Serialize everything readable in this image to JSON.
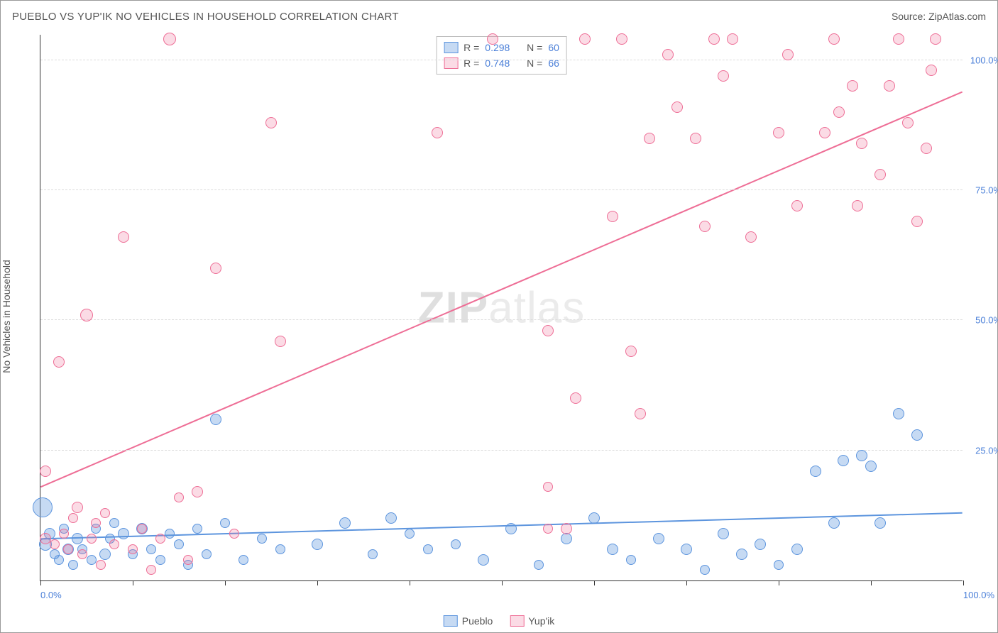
{
  "title": "PUEBLO VS YUP'IK NO VEHICLES IN HOUSEHOLD CORRELATION CHART",
  "source": "Source: ZipAtlas.com",
  "y_axis_label": "No Vehicles in Household",
  "watermark": {
    "bold": "ZIP",
    "rest": "atlas"
  },
  "chart": {
    "type": "scatter",
    "xlim": [
      0,
      100
    ],
    "ylim": [
      0,
      105
    ],
    "y_gridlines": [
      25,
      50,
      75,
      100
    ],
    "y_tick_labels": [
      "25.0%",
      "50.0%",
      "75.0%",
      "100.0%"
    ],
    "x_ticks": [
      0,
      10,
      20,
      30,
      40,
      50,
      60,
      70,
      80,
      90,
      100
    ],
    "x_tick_labels": {
      "min": "0.0%",
      "max": "100.0%"
    },
    "grid_color": "#dcdcdc",
    "axis_color": "#333333",
    "tick_label_color": "#4a7fd8",
    "background": "#ffffff",
    "point_radius_default": 8,
    "series": [
      {
        "name": "Pueblo",
        "color": "#5d95de",
        "fill": "rgba(93,149,222,0.35)",
        "R": 0.298,
        "N": 60,
        "trend": {
          "x0": 0,
          "y0": 8,
          "x1": 100,
          "y1": 13,
          "width": 2
        },
        "points": [
          {
            "x": 0.5,
            "y": 7,
            "r": 9
          },
          {
            "x": 0.2,
            "y": 14,
            "r": 14
          },
          {
            "x": 1.5,
            "y": 5,
            "r": 7
          },
          {
            "x": 1,
            "y": 9,
            "r": 8
          },
          {
            "x": 2,
            "y": 4,
            "r": 7
          },
          {
            "x": 2.5,
            "y": 10,
            "r": 7
          },
          {
            "x": 3,
            "y": 6,
            "r": 8
          },
          {
            "x": 3.5,
            "y": 3,
            "r": 7
          },
          {
            "x": 4,
            "y": 8,
            "r": 8
          },
          {
            "x": 4.5,
            "y": 6,
            "r": 7
          },
          {
            "x": 5.5,
            "y": 4,
            "r": 7
          },
          {
            "x": 6,
            "y": 10,
            "r": 7
          },
          {
            "x": 7,
            "y": 5,
            "r": 8
          },
          {
            "x": 7.5,
            "y": 8,
            "r": 7
          },
          {
            "x": 8,
            "y": 11,
            "r": 7
          },
          {
            "x": 9,
            "y": 9,
            "r": 8
          },
          {
            "x": 10,
            "y": 5,
            "r": 7
          },
          {
            "x": 11,
            "y": 10,
            "r": 8
          },
          {
            "x": 12,
            "y": 6,
            "r": 7
          },
          {
            "x": 13,
            "y": 4,
            "r": 7
          },
          {
            "x": 14,
            "y": 9,
            "r": 7
          },
          {
            "x": 15,
            "y": 7,
            "r": 7
          },
          {
            "x": 16,
            "y": 3,
            "r": 7
          },
          {
            "x": 17,
            "y": 10,
            "r": 7
          },
          {
            "x": 18,
            "y": 5,
            "r": 7
          },
          {
            "x": 19,
            "y": 31,
            "r": 8
          },
          {
            "x": 20,
            "y": 11,
            "r": 7
          },
          {
            "x": 22,
            "y": 4,
            "r": 7
          },
          {
            "x": 24,
            "y": 8,
            "r": 7
          },
          {
            "x": 26,
            "y": 6,
            "r": 7
          },
          {
            "x": 30,
            "y": 7,
            "r": 8
          },
          {
            "x": 33,
            "y": 11,
            "r": 8
          },
          {
            "x": 36,
            "y": 5,
            "r": 7
          },
          {
            "x": 38,
            "y": 12,
            "r": 8
          },
          {
            "x": 40,
            "y": 9,
            "r": 7
          },
          {
            "x": 42,
            "y": 6,
            "r": 7
          },
          {
            "x": 45,
            "y": 7,
            "r": 7
          },
          {
            "x": 48,
            "y": 4,
            "r": 8
          },
          {
            "x": 51,
            "y": 10,
            "r": 8
          },
          {
            "x": 54,
            "y": 3,
            "r": 7
          },
          {
            "x": 57,
            "y": 8,
            "r": 8
          },
          {
            "x": 60,
            "y": 12,
            "r": 8
          },
          {
            "x": 62,
            "y": 6,
            "r": 8
          },
          {
            "x": 64,
            "y": 4,
            "r": 7
          },
          {
            "x": 67,
            "y": 8,
            "r": 8
          },
          {
            "x": 70,
            "y": 6,
            "r": 8
          },
          {
            "x": 72,
            "y": 2,
            "r": 7
          },
          {
            "x": 74,
            "y": 9,
            "r": 8
          },
          {
            "x": 76,
            "y": 5,
            "r": 8
          },
          {
            "x": 78,
            "y": 7,
            "r": 8
          },
          {
            "x": 80,
            "y": 3,
            "r": 7
          },
          {
            "x": 82,
            "y": 6,
            "r": 8
          },
          {
            "x": 84,
            "y": 21,
            "r": 8
          },
          {
            "x": 86,
            "y": 11,
            "r": 8
          },
          {
            "x": 87,
            "y": 23,
            "r": 8
          },
          {
            "x": 89,
            "y": 24,
            "r": 8
          },
          {
            "x": 90,
            "y": 22,
            "r": 8
          },
          {
            "x": 91,
            "y": 11,
            "r": 8
          },
          {
            "x": 93,
            "y": 32,
            "r": 8
          },
          {
            "x": 95,
            "y": 28,
            "r": 8
          }
        ]
      },
      {
        "name": "Yup'ik",
        "color": "#ee6e96",
        "fill": "rgba(238,110,150,0.25)",
        "R": 0.748,
        "N": 66,
        "trend": {
          "x0": 0,
          "y0": 18,
          "x1": 100,
          "y1": 94,
          "width": 2
        },
        "points": [
          {
            "x": 0.5,
            "y": 8,
            "r": 8
          },
          {
            "x": 0.5,
            "y": 21,
            "r": 8
          },
          {
            "x": 1.5,
            "y": 7,
            "r": 7
          },
          {
            "x": 2,
            "y": 42,
            "r": 8
          },
          {
            "x": 2.5,
            "y": 9,
            "r": 7
          },
          {
            "x": 3,
            "y": 6,
            "r": 7
          },
          {
            "x": 3.5,
            "y": 12,
            "r": 7
          },
          {
            "x": 4,
            "y": 14,
            "r": 8
          },
          {
            "x": 4.5,
            "y": 5,
            "r": 7
          },
          {
            "x": 5,
            "y": 51,
            "r": 9
          },
          {
            "x": 5.5,
            "y": 8,
            "r": 7
          },
          {
            "x": 6,
            "y": 11,
            "r": 7
          },
          {
            "x": 6.5,
            "y": 3,
            "r": 7
          },
          {
            "x": 7,
            "y": 13,
            "r": 7
          },
          {
            "x": 8,
            "y": 7,
            "r": 7
          },
          {
            "x": 9,
            "y": 66,
            "r": 8
          },
          {
            "x": 10,
            "y": 6,
            "r": 7
          },
          {
            "x": 11,
            "y": 10,
            "r": 7
          },
          {
            "x": 12,
            "y": 2,
            "r": 7
          },
          {
            "x": 13,
            "y": 8,
            "r": 7
          },
          {
            "x": 14,
            "y": 104,
            "r": 9
          },
          {
            "x": 15,
            "y": 16,
            "r": 7
          },
          {
            "x": 16,
            "y": 4,
            "r": 7
          },
          {
            "x": 17,
            "y": 17,
            "r": 8
          },
          {
            "x": 19,
            "y": 60,
            "r": 8
          },
          {
            "x": 21,
            "y": 9,
            "r": 7
          },
          {
            "x": 25,
            "y": 88,
            "r": 8
          },
          {
            "x": 26,
            "y": 46,
            "r": 8
          },
          {
            "x": 43,
            "y": 86,
            "r": 8
          },
          {
            "x": 49,
            "y": 104,
            "r": 8
          },
          {
            "x": 55,
            "y": 10,
            "r": 7
          },
          {
            "x": 55,
            "y": 18,
            "r": 7
          },
          {
            "x": 55,
            "y": 48,
            "r": 8
          },
          {
            "x": 57,
            "y": 10,
            "r": 8
          },
          {
            "x": 58,
            "y": 35,
            "r": 8
          },
          {
            "x": 59,
            "y": 104,
            "r": 8
          },
          {
            "x": 62,
            "y": 70,
            "r": 8
          },
          {
            "x": 63,
            "y": 104,
            "r": 8
          },
          {
            "x": 64,
            "y": 44,
            "r": 8
          },
          {
            "x": 65,
            "y": 32,
            "r": 8
          },
          {
            "x": 66,
            "y": 85,
            "r": 8
          },
          {
            "x": 68,
            "y": 101,
            "r": 8
          },
          {
            "x": 69,
            "y": 91,
            "r": 8
          },
          {
            "x": 71,
            "y": 85,
            "r": 8
          },
          {
            "x": 72,
            "y": 68,
            "r": 8
          },
          {
            "x": 73,
            "y": 104,
            "r": 8
          },
          {
            "x": 74,
            "y": 97,
            "r": 8
          },
          {
            "x": 75,
            "y": 104,
            "r": 8
          },
          {
            "x": 77,
            "y": 66,
            "r": 8
          },
          {
            "x": 80,
            "y": 86,
            "r": 8
          },
          {
            "x": 81,
            "y": 101,
            "r": 8
          },
          {
            "x": 82,
            "y": 72,
            "r": 8
          },
          {
            "x": 85,
            "y": 86,
            "r": 8
          },
          {
            "x": 86,
            "y": 104,
            "r": 8
          },
          {
            "x": 86.5,
            "y": 90,
            "r": 8
          },
          {
            "x": 88,
            "y": 95,
            "r": 8
          },
          {
            "x": 88.5,
            "y": 72,
            "r": 8
          },
          {
            "x": 89,
            "y": 84,
            "r": 8
          },
          {
            "x": 91,
            "y": 78,
            "r": 8
          },
          {
            "x": 92,
            "y": 95,
            "r": 8
          },
          {
            "x": 93,
            "y": 104,
            "r": 8
          },
          {
            "x": 94,
            "y": 88,
            "r": 8
          },
          {
            "x": 95,
            "y": 69,
            "r": 8
          },
          {
            "x": 96,
            "y": 83,
            "r": 8
          },
          {
            "x": 96.5,
            "y": 98,
            "r": 8
          },
          {
            "x": 97,
            "y": 104,
            "r": 8
          }
        ]
      }
    ],
    "legend_box": {
      "rows": [
        {
          "swatch": "blue",
          "r_label": "R =",
          "r_val": "0.298",
          "n_label": "N =",
          "n_val": "60"
        },
        {
          "swatch": "pink",
          "r_label": "R =",
          "r_val": "0.748",
          "n_label": "N =",
          "n_val": "66"
        }
      ]
    },
    "bottom_legend": [
      {
        "swatch": "blue",
        "label": "Pueblo"
      },
      {
        "swatch": "pink",
        "label": "Yup'ik"
      }
    ]
  }
}
